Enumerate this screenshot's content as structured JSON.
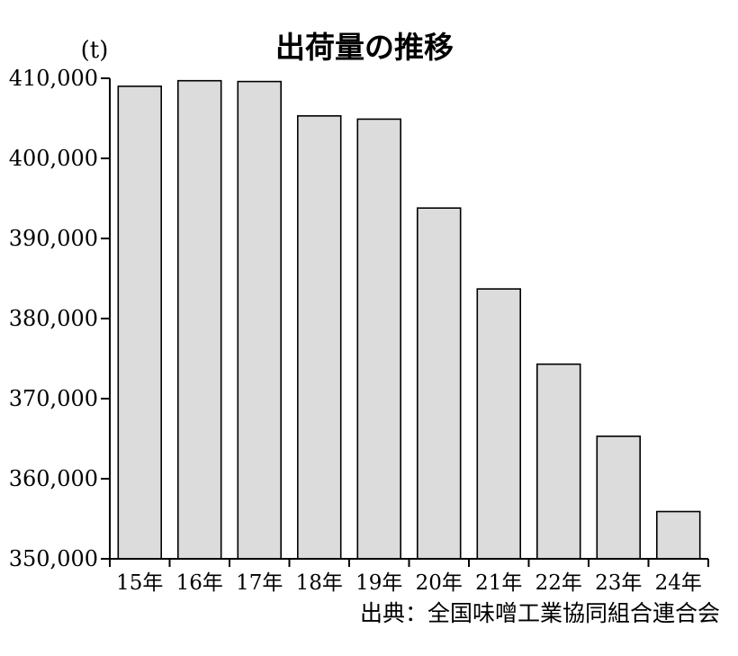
{
  "chart_data": {
    "type": "bar",
    "title": "出荷量の推移",
    "unit_label": "(t)",
    "categories": [
      "15年",
      "16年",
      "17年",
      "18年",
      "19年",
      "20年",
      "21年",
      "22年",
      "23年",
      "24年"
    ],
    "values": [
      409000,
      409700,
      409600,
      405300,
      404900,
      393800,
      383700,
      374300,
      365300,
      355900
    ],
    "ylim": [
      350000,
      410000
    ],
    "yticks": [
      350000,
      360000,
      370000,
      380000,
      390000,
      400000,
      410000
    ],
    "ytick_labels": [
      "350,000",
      "360,000",
      "370,000",
      "380,000",
      "390,000",
      "400,000",
      "410,000"
    ],
    "source": "出典：全国味噌工業協同組合連合会",
    "bar_color": "#dcdcdc",
    "grid": false,
    "legend": "none"
  }
}
